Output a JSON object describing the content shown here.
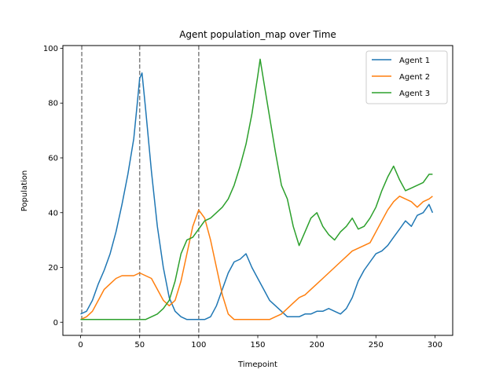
{
  "chart_data": {
    "type": "line",
    "title": "Agent population_map over Time",
    "xlabel": "Timepoint",
    "ylabel": "Population",
    "xlim": [
      -15,
      315
    ],
    "ylim": [
      -4.8,
      101
    ],
    "xticks": [
      0,
      50,
      100,
      150,
      200,
      250,
      300
    ],
    "yticks": [
      0,
      20,
      40,
      60,
      80,
      100
    ],
    "vlines": [
      1,
      50,
      100
    ],
    "legend": "top-right",
    "grid": false,
    "series": [
      {
        "name": "Agent 1",
        "color": "#1f77b4",
        "x": [
          0,
          5,
          10,
          15,
          20,
          25,
          30,
          35,
          40,
          45,
          48,
          50,
          52,
          55,
          60,
          65,
          70,
          75,
          80,
          85,
          90,
          95,
          100,
          105,
          110,
          115,
          120,
          125,
          130,
          135,
          140,
          145,
          150,
          155,
          160,
          165,
          170,
          175,
          180,
          185,
          190,
          195,
          200,
          205,
          210,
          215,
          220,
          225,
          230,
          235,
          240,
          245,
          250,
          255,
          260,
          265,
          270,
          275,
          280,
          285,
          290,
          295,
          298
        ],
        "values": [
          3,
          4,
          8,
          14,
          19,
          25,
          33,
          43,
          54,
          67,
          80,
          89,
          91,
          78,
          55,
          35,
          20,
          9,
          4,
          2,
          1,
          1,
          1,
          1,
          2,
          6,
          12,
          18,
          22,
          23,
          25,
          20,
          16,
          12,
          8,
          6,
          4,
          2,
          2,
          2,
          3,
          3,
          4,
          4,
          5,
          4,
          3,
          5,
          9,
          15,
          19,
          22,
          25,
          26,
          28,
          31,
          34,
          37,
          35,
          39,
          40,
          43,
          40
        ]
      },
      {
        "name": "Agent 2",
        "color": "#ff7f0e",
        "x": [
          0,
          5,
          10,
          15,
          20,
          25,
          30,
          35,
          40,
          45,
          50,
          55,
          60,
          65,
          70,
          75,
          80,
          85,
          90,
          95,
          100,
          105,
          110,
          115,
          120,
          125,
          130,
          135,
          140,
          145,
          150,
          155,
          160,
          165,
          170,
          175,
          180,
          185,
          190,
          195,
          200,
          205,
          210,
          215,
          220,
          225,
          230,
          235,
          240,
          245,
          250,
          255,
          260,
          265,
          270,
          275,
          280,
          285,
          290,
          295,
          298
        ],
        "values": [
          1,
          2,
          4,
          8,
          12,
          14,
          16,
          17,
          17,
          17,
          18,
          17,
          16,
          12,
          8,
          6,
          8,
          15,
          25,
          35,
          41,
          38,
          30,
          20,
          10,
          3,
          1,
          1,
          1,
          1,
          1,
          1,
          1,
          2,
          3,
          5,
          7,
          9,
          10,
          12,
          14,
          16,
          18,
          20,
          22,
          24,
          26,
          27,
          28,
          29,
          33,
          37,
          41,
          44,
          46,
          45,
          44,
          42,
          44,
          45,
          46
        ]
      },
      {
        "name": "Agent 3",
        "color": "#2ca02c",
        "x": [
          0,
          5,
          10,
          15,
          20,
          25,
          30,
          35,
          40,
          45,
          50,
          55,
          60,
          65,
          70,
          75,
          80,
          85,
          90,
          95,
          100,
          105,
          110,
          115,
          120,
          125,
          130,
          135,
          140,
          145,
          150,
          152,
          155,
          160,
          165,
          170,
          175,
          180,
          185,
          190,
          195,
          200,
          205,
          210,
          215,
          220,
          225,
          230,
          235,
          240,
          245,
          250,
          255,
          260,
          265,
          270,
          275,
          280,
          285,
          290,
          295,
          298
        ],
        "values": [
          1,
          1,
          1,
          1,
          1,
          1,
          1,
          1,
          1,
          1,
          1,
          1,
          2,
          3,
          5,
          8,
          15,
          25,
          30,
          31,
          34,
          37,
          38,
          40,
          42,
          45,
          50,
          57,
          65,
          76,
          90,
          96,
          88,
          75,
          62,
          50,
          45,
          35,
          28,
          33,
          38,
          40,
          35,
          32,
          30,
          33,
          35,
          38,
          34,
          35,
          38,
          42,
          48,
          53,
          57,
          52,
          48,
          49,
          50,
          51,
          54,
          54
        ]
      }
    ]
  }
}
